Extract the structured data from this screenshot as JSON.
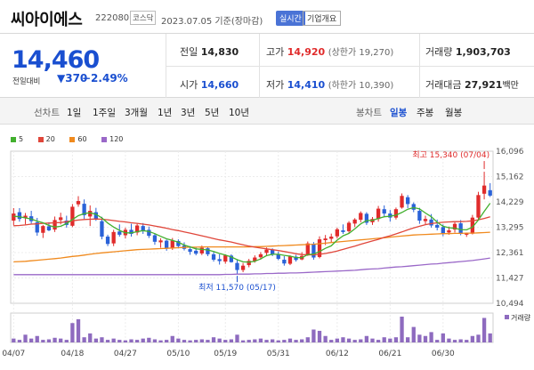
{
  "header": {
    "name": "씨아이에스",
    "code": "222080",
    "market": "코스닥",
    "date": "2023.07.05 기준(장마감)",
    "realtime_btn": "실시간",
    "overview_btn": "기업개요"
  },
  "price": {
    "current": "14,460",
    "change_label": "전일대비",
    "change": "▼370",
    "change_pct": "−2.49%"
  },
  "stats": {
    "prev_label": "전일",
    "prev": "14,830",
    "high_label": "고가",
    "high": "14,920",
    "upper_limit": "(상한가 19,270)",
    "volume_label": "거래량",
    "volume": "1,903,703",
    "open_label": "시가",
    "open": "14,660",
    "low_label": "저가",
    "low": "14,410",
    "lower_limit": "(하한가 10,390)",
    "amount_label": "거래대금",
    "amount": "27,921",
    "amount_unit": "백만"
  },
  "tabs": {
    "line_label": "선차트",
    "items": [
      "1일",
      "1주일",
      "3개월",
      "1년",
      "3년",
      "5년",
      "10년"
    ],
    "candle_label": "봉차트",
    "candle_items": [
      "일봉",
      "주봉",
      "월봉"
    ],
    "active": "일봉"
  },
  "chart_data": {
    "type": "line",
    "legend": [
      "5",
      "20",
      "60",
      "120"
    ],
    "colors": {
      "ma5": "#42b02e",
      "ma20": "#e0463a",
      "ma60": "#f08a1e",
      "ma120": "#9a68c8",
      "up": "#e02b2b",
      "down": "#2a62d8",
      "volume": "#8e6bbf"
    },
    "y_ticks": [
      "16,096",
      "15,162",
      "14,229",
      "13,295",
      "12,361",
      "11,427",
      "10,494"
    ],
    "x_ticks": [
      "04/07",
      "04/18",
      "04/27",
      "05/10",
      "05/19",
      "05/31",
      "06/12",
      "06/21",
      "06/30"
    ],
    "ylim": [
      10494,
      16096
    ],
    "annotations": {
      "high": "최고 15,340 (07/04)",
      "low": "최저 11,570 (05/17)"
    },
    "volume_legend": "거래량",
    "candles": [
      [
        13540,
        14000,
        13360,
        13800
      ],
      [
        13850,
        14000,
        13500,
        13600
      ],
      [
        13640,
        13820,
        13400,
        13720
      ],
      [
        13700,
        13900,
        13430,
        13520
      ],
      [
        13480,
        13640,
        12980,
        13100
      ],
      [
        13090,
        13380,
        12900,
        13340
      ],
      [
        13330,
        13480,
        13150,
        13180
      ],
      [
        13210,
        13690,
        13120,
        13560
      ],
      [
        13560,
        13830,
        13400,
        13660
      ],
      [
        13540,
        13720,
        13280,
        13380
      ],
      [
        13350,
        14150,
        13300,
        14050
      ],
      [
        14140,
        14440,
        14050,
        14260
      ],
      [
        14160,
        14320,
        13600,
        13740
      ],
      [
        13690,
        14100,
        13340,
        13900
      ],
      [
        13850,
        14010,
        13530,
        13600
      ],
      [
        13520,
        13680,
        12850,
        12950
      ],
      [
        12950,
        13020,
        12600,
        12680
      ],
      [
        12700,
        13200,
        12600,
        13120
      ],
      [
        13140,
        13400,
        12950,
        13020
      ],
      [
        13000,
        13280,
        12880,
        13200
      ],
      [
        13200,
        13420,
        12950,
        13050
      ],
      [
        13100,
        13420,
        13000,
        13360
      ],
      [
        13340,
        13450,
        13050,
        13160
      ],
      [
        13200,
        13320,
        12900,
        12980
      ],
      [
        13000,
        13080,
        12650,
        12760
      ],
      [
        12740,
        12890,
        12540,
        12810
      ],
      [
        12800,
        12840,
        12430,
        12520
      ],
      [
        12540,
        12900,
        12460,
        12800
      ],
      [
        12790,
        12850,
        12520,
        12600
      ],
      [
        12620,
        12740,
        12440,
        12500
      ],
      [
        12490,
        12600,
        12280,
        12390
      ],
      [
        12430,
        12560,
        12260,
        12320
      ],
      [
        12330,
        12620,
        12270,
        12540
      ],
      [
        12520,
        12580,
        12230,
        12300
      ],
      [
        12300,
        12380,
        12030,
        12100
      ],
      [
        12120,
        12300,
        11920,
        12050
      ],
      [
        12030,
        12300,
        11950,
        12260
      ],
      [
        12250,
        12300,
        11990,
        12010
      ],
      [
        11980,
        12120,
        11570,
        11720
      ],
      [
        11720,
        11980,
        11640,
        11880
      ],
      [
        11900,
        12130,
        11820,
        12060
      ],
      [
        12050,
        12260,
        11990,
        12180
      ],
      [
        12190,
        12380,
        12100,
        12300
      ],
      [
        12350,
        12550,
        12240,
        12470
      ],
      [
        12470,
        12520,
        12230,
        12280
      ],
      [
        12300,
        12400,
        12080,
        12130
      ],
      [
        12100,
        12230,
        11880,
        11960
      ],
      [
        11950,
        12260,
        11900,
        12220
      ],
      [
        12210,
        12280,
        12030,
        12090
      ],
      [
        12110,
        12380,
        12080,
        12240
      ],
      [
        12260,
        12770,
        12240,
        12700
      ],
      [
        12680,
        12750,
        12100,
        12180
      ],
      [
        12200,
        12960,
        12150,
        12850
      ],
      [
        12820,
        13010,
        12640,
        12880
      ],
      [
        12870,
        13060,
        12740,
        12950
      ],
      [
        12960,
        13280,
        12880,
        13220
      ],
      [
        13180,
        13400,
        13050,
        13120
      ],
      [
        13150,
        13520,
        13090,
        13460
      ],
      [
        13430,
        13630,
        13300,
        13580
      ],
      [
        13570,
        13880,
        13480,
        13820
      ],
      [
        13790,
        13850,
        13380,
        13460
      ],
      [
        13480,
        13670,
        13380,
        13600
      ],
      [
        13600,
        14080,
        13500,
        13980
      ],
      [
        13960,
        14100,
        13700,
        13800
      ],
      [
        13800,
        13930,
        13500,
        13650
      ],
      [
        13650,
        14020,
        13580,
        13960
      ],
      [
        14020,
        14540,
        13980,
        14450
      ],
      [
        14400,
        14480,
        14000,
        14150
      ],
      [
        14150,
        14210,
        13850,
        13940
      ],
      [
        13900,
        14010,
        13420,
        13540
      ],
      [
        13520,
        13720,
        13400,
        13600
      ],
      [
        13580,
        13780,
        13280,
        13360
      ],
      [
        13380,
        13580,
        13180,
        13280
      ],
      [
        13300,
        13400,
        12960,
        13060
      ],
      [
        13100,
        13320,
        13020,
        13180
      ],
      [
        13210,
        13480,
        13100,
        13420
      ],
      [
        13440,
        13560,
        13000,
        13050
      ],
      [
        13020,
        13100,
        12940,
        13080
      ],
      [
        13060,
        13750,
        13030,
        13650
      ],
      [
        13650,
        14600,
        13580,
        14480
      ],
      [
        14530,
        15340,
        14320,
        14830
      ],
      [
        14660,
        14920,
        14410,
        14460
      ]
    ],
    "ma5": [
      13700,
      13680,
      13640,
      13600,
      13520,
      13460,
      13360,
      13300,
      13330,
      13430,
      13580,
      13720,
      13800,
      13830,
      13770,
      13640,
      13450,
      13300,
      13180,
      13090,
      13090,
      13130,
      13170,
      13140,
      13060,
      12960,
      12870,
      12810,
      12740,
      12640,
      12570,
      12500,
      12480,
      12460,
      12400,
      12330,
      12270,
      12200,
      12100,
      12020,
      12010,
      12040,
      12130,
      12250,
      12300,
      12300,
      12260,
      12230,
      12180,
      12170,
      12290,
      12310,
      12400,
      12520,
      12610,
      12820,
      12980,
      13070,
      13240,
      13420,
      13540,
      13550,
      13620,
      13680,
      13700,
      13740,
      13840,
      13960,
      14020,
      13970,
      13820,
      13680,
      13480,
      13330,
      13280,
      13260,
      13210,
      13200,
      13300,
      13560,
      13880,
      14180
    ],
    "ma20": [
      13350,
      13360,
      13380,
      13410,
      13420,
      13440,
      13450,
      13460,
      13470,
      13500,
      13530,
      13560,
      13580,
      13590,
      13600,
      13590,
      13570,
      13540,
      13510,
      13490,
      13460,
      13440,
      13410,
      13380,
      13340,
      13300,
      13260,
      13210,
      13170,
      13120,
      13080,
      13030,
      12980,
      12930,
      12880,
      12830,
      12790,
      12750,
      12700,
      12650,
      12600,
      12560,
      12530,
      12500,
      12470,
      12440,
      12400,
      12360,
      12320,
      12290,
      12280,
      12280,
      12300,
      12330,
      12370,
      12420,
      12480,
      12540,
      12600,
      12670,
      12730,
      12790,
      12850,
      12920,
      12980,
      13050,
      13120,
      13200,
      13270,
      13330,
      13390,
      13430,
      13460,
      13480,
      13490,
      13500,
      13500,
      13510,
      13530,
      13570,
      13620,
      13680
    ],
    "ma60": [
      12020,
      12030,
      12040,
      12060,
      12080,
      12100,
      12120,
      12140,
      12160,
      12190,
      12220,
      12240,
      12270,
      12300,
      12330,
      12350,
      12370,
      12390,
      12410,
      12430,
      12450,
      12470,
      12480,
      12490,
      12500,
      12510,
      12520,
      12530,
      12540,
      12550,
      12560,
      12560,
      12570,
      12570,
      12570,
      12570,
      12570,
      12570,
      12570,
      12570,
      12570,
      12580,
      12580,
      12590,
      12600,
      12610,
      12620,
      12630,
      12640,
      12650,
      12660,
      12670,
      12690,
      12710,
      12730,
      12750,
      12770,
      12790,
      12810,
      12830,
      12850,
      12870,
      12890,
      12910,
      12930,
      12950,
      12970,
      12990,
      13010,
      13020,
      13030,
      13040,
      13050,
      13060,
      13060,
      13070,
      13070,
      13080,
      13080,
      13090,
      13100,
      13110
    ],
    "ma120": [
      11550,
      11550,
      11550,
      11550,
      11550,
      11550,
      11550,
      11550,
      11550,
      11550,
      11550,
      11550,
      11550,
      11550,
      11550,
      11550,
      11550,
      11550,
      11550,
      11550,
      11550,
      11550,
      11550,
      11550,
      11550,
      11550,
      11550,
      11550,
      11550,
      11550,
      11550,
      11550,
      11550,
      11550,
      11550,
      11550,
      11560,
      11560,
      11570,
      11570,
      11570,
      11580,
      11580,
      11590,
      11590,
      11600,
      11600,
      11610,
      11610,
      11620,
      11630,
      11640,
      11650,
      11660,
      11670,
      11680,
      11690,
      11700,
      11710,
      11730,
      11750,
      11760,
      11770,
      11790,
      11810,
      11830,
      11840,
      11860,
      11880,
      11900,
      11920,
      11940,
      11950,
      11970,
      11990,
      12010,
      12030,
      12050,
      12070,
      12100,
      12130,
      12160
    ],
    "volume": [
      0.15,
      0.1,
      0.3,
      0.15,
      0.25,
      0.1,
      0.12,
      0.18,
      0.15,
      0.1,
      0.75,
      0.9,
      0.2,
      0.35,
      0.15,
      0.2,
      0.1,
      0.15,
      0.1,
      0.08,
      0.12,
      0.1,
      0.15,
      0.18,
      0.12,
      0.08,
      0.1,
      0.25,
      0.15,
      0.1,
      0.08,
      0.1,
      0.12,
      0.1,
      0.2,
      0.15,
      0.1,
      0.12,
      0.3,
      0.08,
      0.1,
      0.12,
      0.15,
      0.1,
      0.12,
      0.08,
      0.1,
      0.15,
      0.1,
      0.12,
      0.2,
      0.5,
      0.45,
      0.25,
      0.1,
      0.15,
      0.2,
      0.15,
      0.1,
      0.12,
      0.25,
      0.15,
      0.1,
      0.2,
      0.15,
      0.2,
      1.0,
      0.2,
      0.6,
      0.3,
      0.25,
      0.4,
      0.1,
      0.35,
      0.15,
      0.1,
      0.12,
      0.1,
      0.25,
      0.3,
      0.95,
      0.35
    ]
  }
}
